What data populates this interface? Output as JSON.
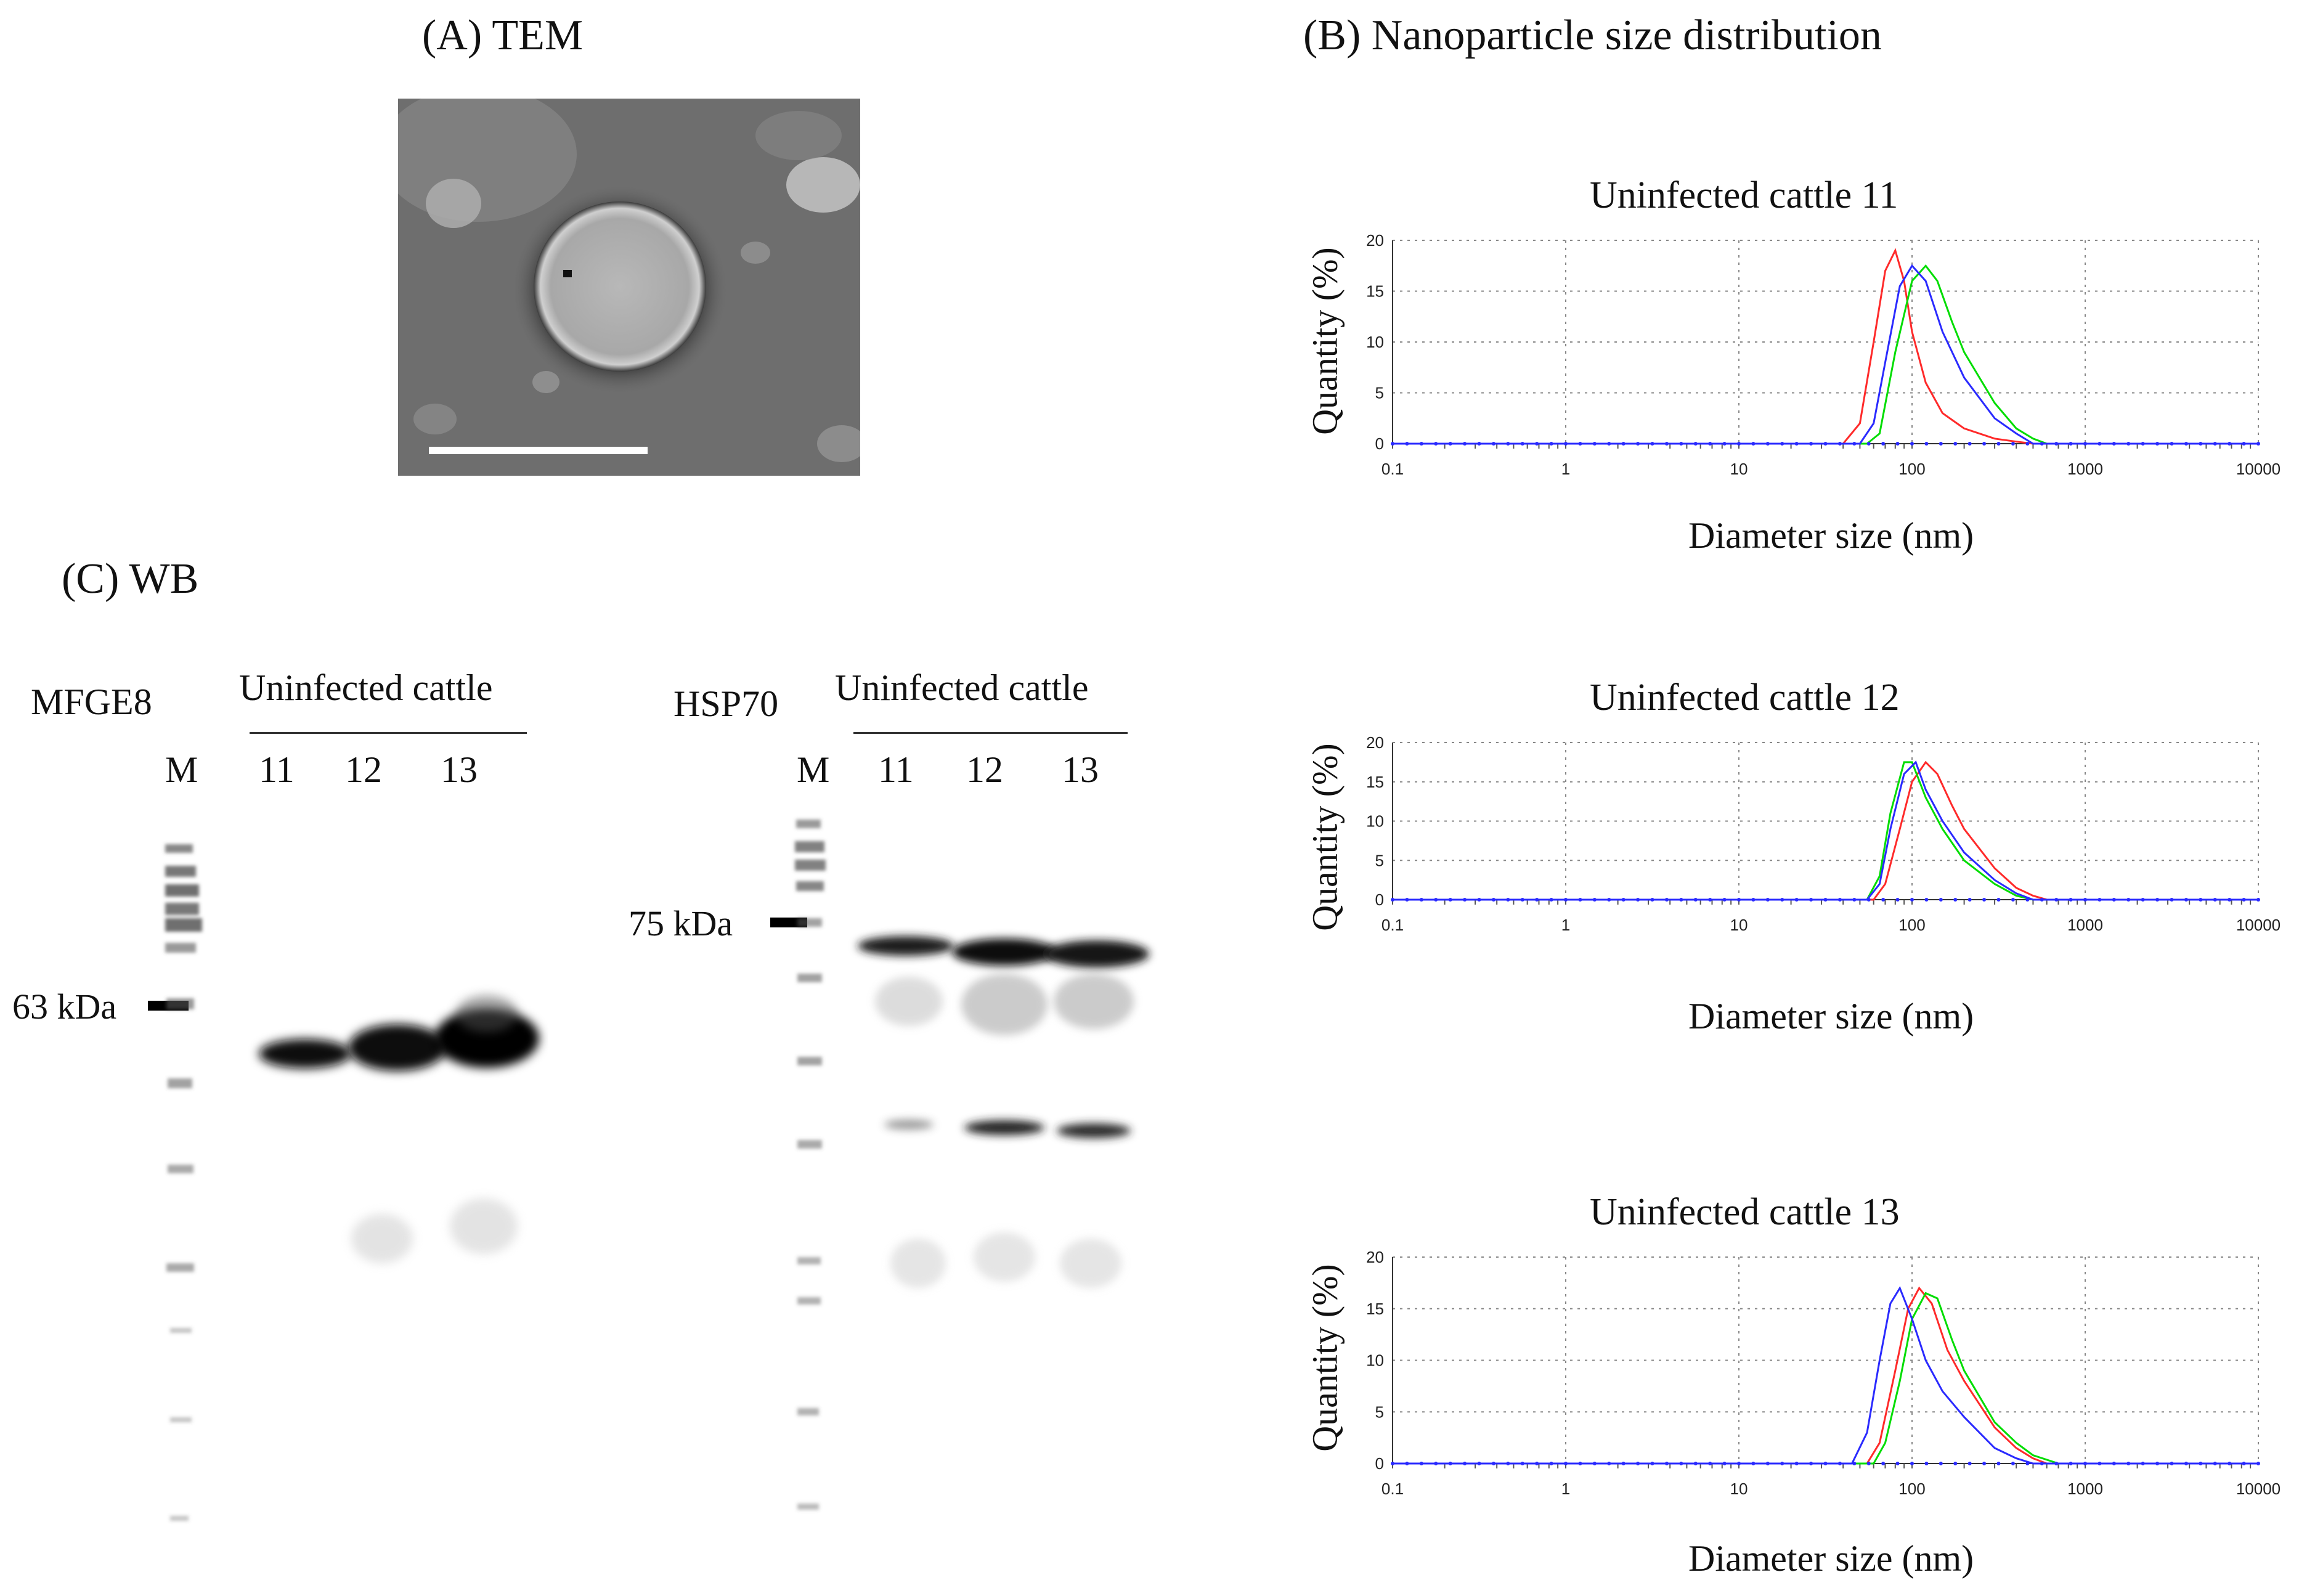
{
  "panels": {
    "a_title": "(A) TEM",
    "b_title": "(B) Nanoparticle size distribution",
    "c_title": "(C) WB"
  },
  "wb": {
    "left": {
      "protein": "MFGE8",
      "group": "Uninfected cattle",
      "marker": "M",
      "lanes": [
        "11",
        "12",
        "13"
      ],
      "mw": "63 kDa"
    },
    "right": {
      "protein": "HSP70",
      "group": "Uninfected cattle",
      "marker": "M",
      "lanes": [
        "11",
        "12",
        "13"
      ],
      "mw": "75 kDa"
    }
  },
  "colors": {
    "red": "#ff2a2a",
    "green": "#00dd00",
    "blue": "#2a2aff",
    "grid": "#888888"
  },
  "chart_data": [
    {
      "type": "line",
      "title": "Uninfected cattle  11",
      "xlabel": "Diameter size (nm)",
      "ylabel": "Quantity (%)",
      "xscale": "log",
      "xlim": [
        0.1,
        10000
      ],
      "ylim": [
        0,
        20
      ],
      "xticks": [
        "0.1",
        "1",
        "10",
        "100",
        "1000",
        "10000"
      ],
      "yticks": [
        "0",
        "5",
        "10",
        "15",
        "20"
      ],
      "grid": true,
      "series": [
        {
          "color": "#ff2a2a",
          "x": [
            0.1,
            40,
            50,
            60,
            70,
            80,
            90,
            100,
            120,
            150,
            200,
            300,
            400,
            500,
            10000
          ],
          "y": [
            0,
            0,
            2,
            10,
            17,
            19,
            16,
            11,
            6,
            3,
            1.5,
            0.5,
            0.2,
            0,
            0
          ]
        },
        {
          "color": "#00dd00",
          "x": [
            0.1,
            55,
            65,
            80,
            100,
            120,
            140,
            170,
            200,
            300,
            400,
            500,
            600,
            10000
          ],
          "y": [
            0,
            0,
            1,
            9,
            16,
            17.5,
            16,
            12,
            9,
            4,
            1.5,
            0.5,
            0,
            0
          ]
        },
        {
          "color": "#2a2aff",
          "x": [
            0.1,
            50,
            60,
            70,
            85,
            100,
            120,
            150,
            200,
            300,
            400,
            500,
            10000
          ],
          "y": [
            0,
            0,
            2,
            8,
            15.5,
            17.5,
            16,
            11,
            6.5,
            2.5,
            1,
            0,
            0
          ]
        }
      ]
    },
    {
      "type": "line",
      "title": "Uninfected cattle  12",
      "xlabel": "Diameter size (nm)",
      "ylabel": "Quantity (%)",
      "xscale": "log",
      "xlim": [
        0.1,
        10000
      ],
      "ylim": [
        0,
        20
      ],
      "xticks": [
        "0.1",
        "1",
        "10",
        "100",
        "1000",
        "10000"
      ],
      "yticks": [
        "0",
        "5",
        "10",
        "15",
        "20"
      ],
      "grid": true,
      "series": [
        {
          "color": "#ff2a2a",
          "x": [
            0.1,
            60,
            70,
            85,
            100,
            120,
            140,
            170,
            200,
            300,
            400,
            500,
            600,
            10000
          ],
          "y": [
            0,
            0,
            2,
            9,
            15,
            17.5,
            16,
            12,
            9,
            4,
            1.5,
            0.5,
            0,
            0
          ]
        },
        {
          "color": "#00dd00",
          "x": [
            0.1,
            55,
            65,
            75,
            90,
            100,
            120,
            150,
            200,
            300,
            400,
            500,
            10000
          ],
          "y": [
            0,
            0,
            3,
            11,
            17.5,
            17.5,
            13,
            9,
            5,
            2,
            0.5,
            0,
            0
          ]
        },
        {
          "color": "#2a2aff",
          "x": [
            0.1,
            55,
            65,
            75,
            90,
            105,
            120,
            150,
            200,
            300,
            400,
            500,
            10000
          ],
          "y": [
            0,
            0,
            2,
            9,
            16,
            17.5,
            14,
            10,
            6,
            2.5,
            0.8,
            0,
            0
          ]
        }
      ]
    },
    {
      "type": "line",
      "title": "Uninfected cattle  13",
      "xlabel": "Diameter size (nm)",
      "ylabel": "Quantity (%)",
      "xscale": "log",
      "xlim": [
        0.1,
        10000
      ],
      "ylim": [
        0,
        20
      ],
      "xticks": [
        "0.1",
        "1",
        "10",
        "100",
        "1000",
        "10000"
      ],
      "yticks": [
        "0",
        "5",
        "10",
        "15",
        "20"
      ],
      "grid": true,
      "series": [
        {
          "color": "#ff2a2a",
          "x": [
            0.1,
            55,
            65,
            80,
            95,
            110,
            130,
            160,
            200,
            300,
            400,
            500,
            600,
            10000
          ],
          "y": [
            0,
            0,
            2,
            9,
            15,
            17,
            15.5,
            11,
            8,
            3.5,
            1.5,
            0.5,
            0,
            0
          ]
        },
        {
          "color": "#00dd00",
          "x": [
            0.1,
            60,
            70,
            85,
            100,
            120,
            140,
            170,
            200,
            300,
            400,
            500,
            700,
            10000
          ],
          "y": [
            0,
            0,
            2,
            8,
            14,
            16.5,
            16,
            12,
            9,
            4,
            2,
            0.8,
            0,
            0
          ]
        },
        {
          "color": "#2a2aff",
          "x": [
            0.1,
            45,
            55,
            65,
            75,
            85,
            100,
            120,
            150,
            200,
            300,
            400,
            500,
            10000
          ],
          "y": [
            0,
            0,
            3,
            10,
            15.5,
            17,
            14,
            10,
            7,
            4.5,
            1.5,
            0.5,
            0,
            0
          ]
        }
      ]
    }
  ]
}
